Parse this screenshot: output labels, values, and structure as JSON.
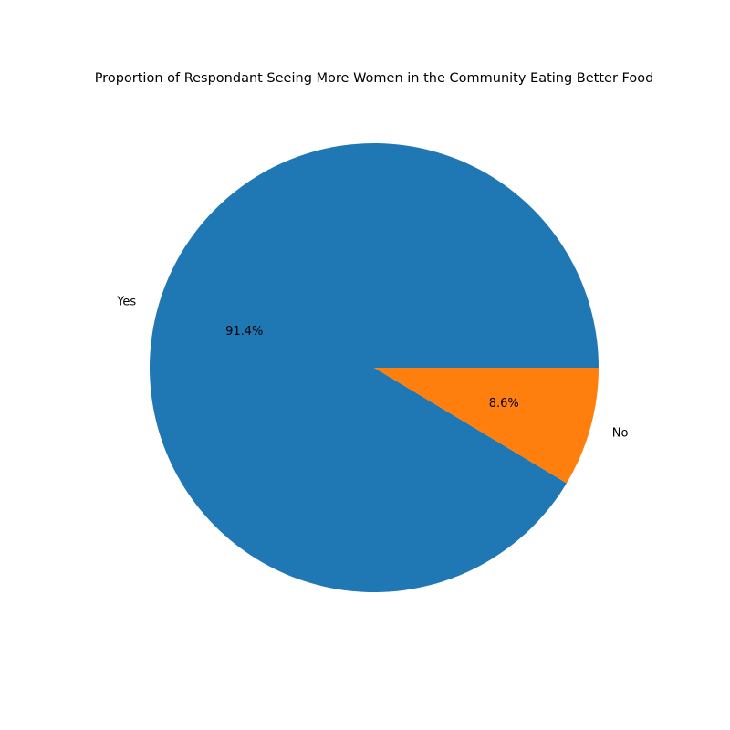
{
  "chart_data": {
    "type": "pie",
    "title": "Proportion of Respondant Seeing More Women in the Community Eating Better Food",
    "categories": [
      "Yes",
      "No"
    ],
    "values": [
      91.4,
      8.6
    ],
    "value_labels": [
      "91.4%",
      "8.6%"
    ],
    "colors": [
      "#1f77b4",
      "#ff7f0e"
    ],
    "start_angle_deg": 0,
    "direction": "counterclockwise"
  }
}
